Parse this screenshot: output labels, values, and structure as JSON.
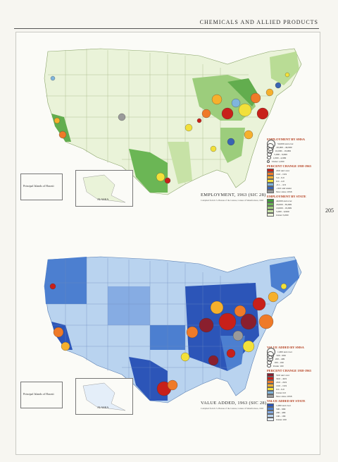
{
  "header": {
    "title": "CHEMICALS AND ALLIED PRODUCTS",
    "page_number": "205"
  },
  "map_top": {
    "title": "EMPLOYMENT, 1963 (SIC 28)",
    "credit": "Compiled from U.S. Bureau of the Census, Census of Manufactures, 1963",
    "inset_labels": {
      "hawaii": "Principal Islands of Hawaii",
      "alaska": "ALASKA"
    },
    "legends": [
      {
        "title": "EMPLOYMENT BY SMSA",
        "type": "circles",
        "items": [
          "50,000 and over",
          "20,000 - 49,999",
          "10,000 - 19,999",
          "5,000 - 9,999",
          "1,000 - 4,999",
          "Under 1,000"
        ]
      },
      {
        "title": "PERCENT CHANGE 1958-1963",
        "type": "colors",
        "items": [
          {
            "label": "20.0 and over",
            "color": "#c8201a"
          },
          {
            "label": "10.0 - 19.9",
            "color": "#ef7a28"
          },
          {
            "label": "5.0 - 9.9",
            "color": "#f6b02d"
          },
          {
            "label": "0.0 - 4.9",
            "color": "#f2e03a"
          },
          {
            "label": "-0.1 - -9.9",
            "color": "#7fb5dd"
          },
          {
            "label": "-10.0 and under",
            "color": "#3a64b2"
          },
          {
            "label": "New since 1958",
            "color": "#9a9a9a"
          }
        ]
      },
      {
        "title": "EMPLOYMENT BY STATE",
        "type": "colors",
        "items": [
          {
            "label": "40,000 and over",
            "color": "#3f9b3a"
          },
          {
            "label": "20,000 - 39,999",
            "color": "#6bb655"
          },
          {
            "label": "10,000 - 19,999",
            "color": "#9ccd7c"
          },
          {
            "label": "5,000 - 9,999",
            "color": "#c7e2a6"
          },
          {
            "label": "Under 5,000",
            "color": "#eef5dc"
          }
        ]
      }
    ]
  },
  "map_bottom": {
    "title": "VALUE ADDED, 1963 (SIC 28)",
    "credit": "Compiled from U.S. Bureau of the Census, Census of Manufactures, 1963",
    "inset_labels": {
      "hawaii": "Principal Islands of Hawaii",
      "alaska": "ALASKA"
    },
    "legends": [
      {
        "title": "VALUE ADDED BY SMSA",
        "type": "circles",
        "items": [
          "1,000 and over",
          "500 - 999",
          "200 - 499",
          "100 - 199",
          "Under 100"
        ]
      },
      {
        "title": "PERCENT CHANGE 1958-1963",
        "type": "colors",
        "items": [
          {
            "label": "50.0 and over",
            "color": "#8a1f2e"
          },
          {
            "label": "30.0 - 49.9",
            "color": "#c8201a"
          },
          {
            "label": "20.0 - 29.9",
            "color": "#ef7a28"
          },
          {
            "label": "10.0 - 19.9",
            "color": "#f6b02d"
          },
          {
            "label": "0.0 - 9.9",
            "color": "#f2e03a"
          },
          {
            "label": "Under 0.0",
            "color": "#7fb5dd"
          },
          {
            "label": "New since 1958",
            "color": "#9a9a9a"
          }
        ]
      },
      {
        "title": "VALUE ADDED BY STATE",
        "type": "colors",
        "items": [
          {
            "label": "1,000 and over",
            "color": "#2c55b8"
          },
          {
            "label": "500 - 999",
            "color": "#4c7fd0"
          },
          {
            "label": "200 - 499",
            "color": "#86ace3"
          },
          {
            "label": "100 - 199",
            "color": "#b9d3ef"
          },
          {
            "label": "Under 100",
            "color": "#e4eef9"
          }
        ]
      }
    ]
  },
  "colors": {
    "land_light": "#eaf3d9",
    "land_mid": "#b9dc95",
    "land_dark": "#62ad4e",
    "blue_dark": "#2d5bbd",
    "blue_mid": "#6d9be0",
    "blue_light": "#c9dcf3",
    "red": "#c8201a",
    "orange": "#ef7a28",
    "yellow": "#f2d93a"
  }
}
